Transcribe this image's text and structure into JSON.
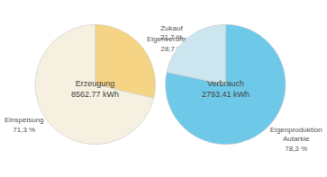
{
  "chart_data": [
    {
      "type": "pie",
      "categories": [
        "Eigenverbrauch",
        "Einspeisung"
      ],
      "values": [
        28.7,
        71.3
      ],
      "value_labels": [
        "28,7 %",
        "71,3 %"
      ],
      "data_labels": true,
      "colors": [
        "#f5d485",
        "#f5f0e0"
      ],
      "annotations": [
        "Erzeugung\n8562.77 kWh"
      ]
    },
    {
      "type": "pie",
      "categories": [
        "Eigenproduktion\nAutarkie",
        "Zukauf"
      ],
      "values": [
        78.3,
        21.7
      ],
      "value_labels": [
        "78,3 %",
        "21,7 %"
      ],
      "data_labels": true,
      "colors": [
        "#6ec9e8",
        "#cce6ef"
      ],
      "annotations": [
        "Verbrauch\n2793.41 kWh"
      ]
    }
  ]
}
